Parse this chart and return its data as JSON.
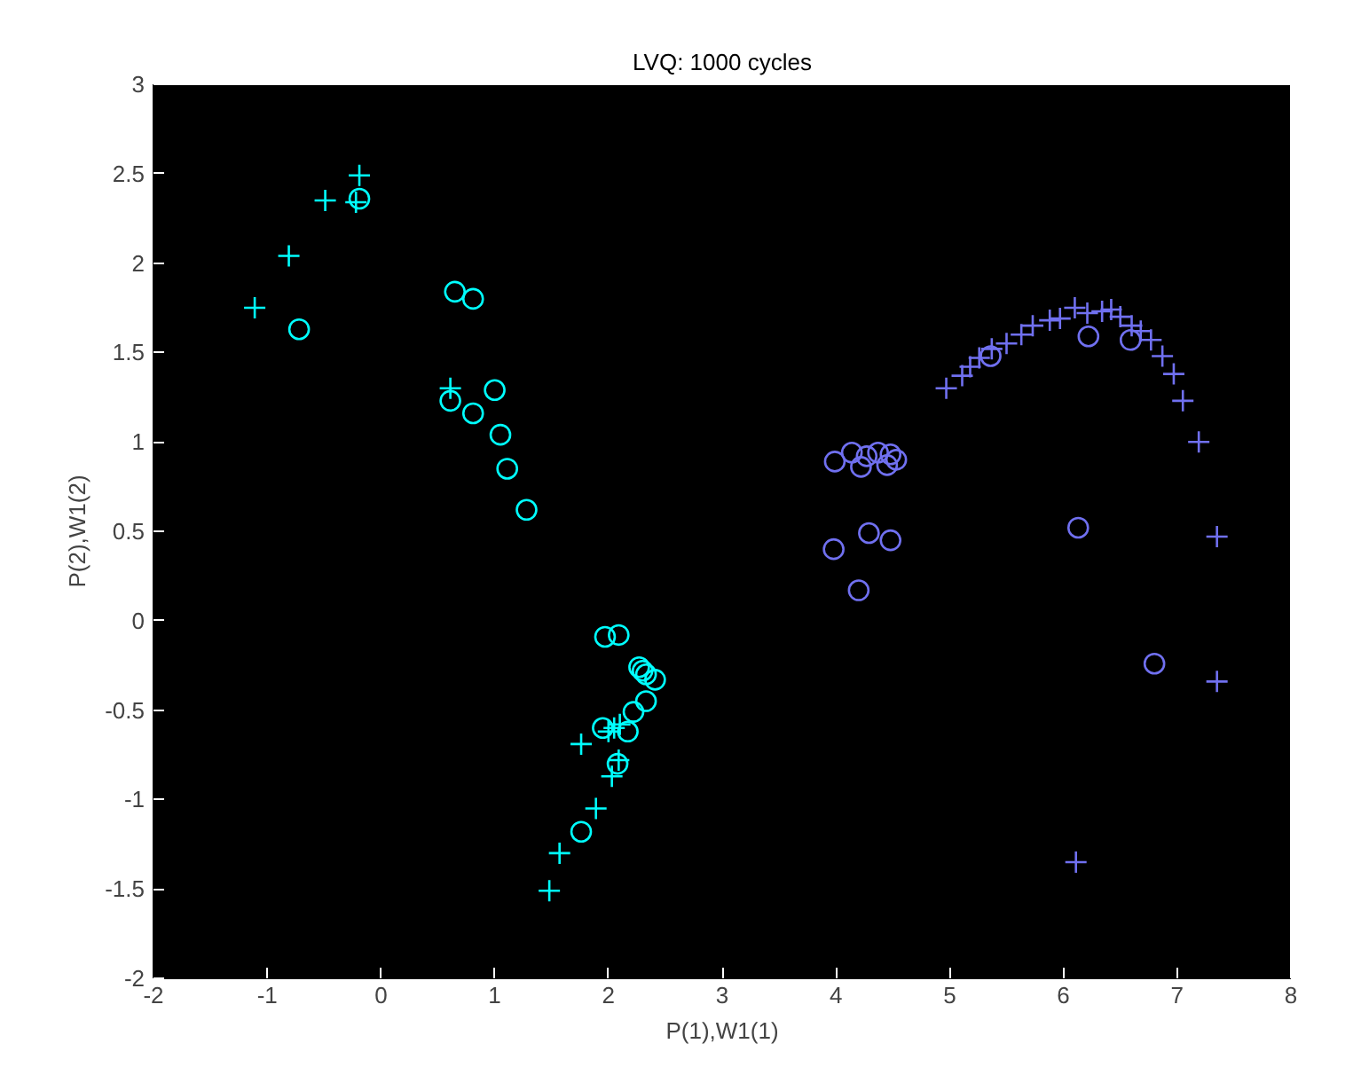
{
  "chart_data": {
    "type": "scatter",
    "title": "LVQ: 1000 cycles",
    "xlabel": "P(1),W1(1)",
    "ylabel": "P(2),W1(2)",
    "xlim": [
      -2,
      8
    ],
    "ylim": [
      -2,
      3
    ],
    "xticks": [
      -2,
      -1,
      0,
      1,
      2,
      3,
      4,
      5,
      6,
      7,
      8
    ],
    "yticks": [
      -2,
      -1.5,
      -1,
      -0.5,
      0,
      0.5,
      1,
      1.5,
      2,
      2.5,
      3
    ],
    "grid": false,
    "series": [
      {
        "color": "#00ffff",
        "marker": "cross",
        "x": [
          -1.11,
          -0.81,
          -0.49,
          -0.19,
          -0.22,
          0.61,
          1.48,
          1.57,
          1.89,
          2.03,
          1.76,
          2.05,
          2.0,
          2.1,
          2.09
        ],
        "values": [
          1.75,
          2.04,
          2.35,
          2.49,
          2.34,
          1.3,
          -1.51,
          -1.3,
          -1.05,
          -0.87,
          -0.69,
          -0.6,
          -0.62,
          -0.58,
          -0.78
        ]
      },
      {
        "color": "#00ffff",
        "marker": "circle",
        "x": [
          -0.72,
          -0.19,
          0.65,
          0.81,
          0.61,
          0.81,
          1.0,
          1.05,
          1.11,
          1.28,
          1.76,
          1.97,
          2.09,
          2.3,
          2.27,
          2.33,
          2.41,
          2.33,
          2.22,
          2.17,
          1.95,
          2.08
        ],
        "values": [
          1.63,
          2.36,
          1.84,
          1.8,
          1.23,
          1.16,
          1.29,
          1.04,
          0.85,
          0.62,
          -1.18,
          -0.09,
          -0.08,
          -0.28,
          -0.26,
          -0.3,
          -0.33,
          -0.45,
          -0.51,
          -0.62,
          -0.6,
          -0.8
        ]
      },
      {
        "color": "#7070f0",
        "marker": "cross",
        "x": [
          4.97,
          5.11,
          5.18,
          5.26,
          5.37,
          5.5,
          5.63,
          5.73,
          5.88,
          5.97,
          6.1,
          6.21,
          6.34,
          6.42,
          6.5,
          6.6,
          6.68,
          6.77,
          6.87,
          6.97,
          7.05,
          7.19,
          7.35,
          7.35,
          6.11
        ],
        "values": [
          1.3,
          1.37,
          1.42,
          1.47,
          1.52,
          1.55,
          1.6,
          1.65,
          1.68,
          1.69,
          1.75,
          1.72,
          1.73,
          1.74,
          1.7,
          1.65,
          1.62,
          1.57,
          1.48,
          1.38,
          1.23,
          1.0,
          0.47,
          -0.34,
          -1.35
        ]
      },
      {
        "color": "#7070f0",
        "marker": "circle",
        "x": [
          5.36,
          6.22,
          6.59,
          6.13,
          3.99,
          4.14,
          4.22,
          4.27,
          4.37,
          4.45,
          4.48,
          4.53,
          3.98,
          4.29,
          4.48,
          4.2,
          6.8
        ],
        "values": [
          1.48,
          1.59,
          1.57,
          0.52,
          0.89,
          0.94,
          0.86,
          0.92,
          0.94,
          0.87,
          0.93,
          0.9,
          0.4,
          0.49,
          0.45,
          0.17,
          -0.24
        ]
      }
    ]
  }
}
